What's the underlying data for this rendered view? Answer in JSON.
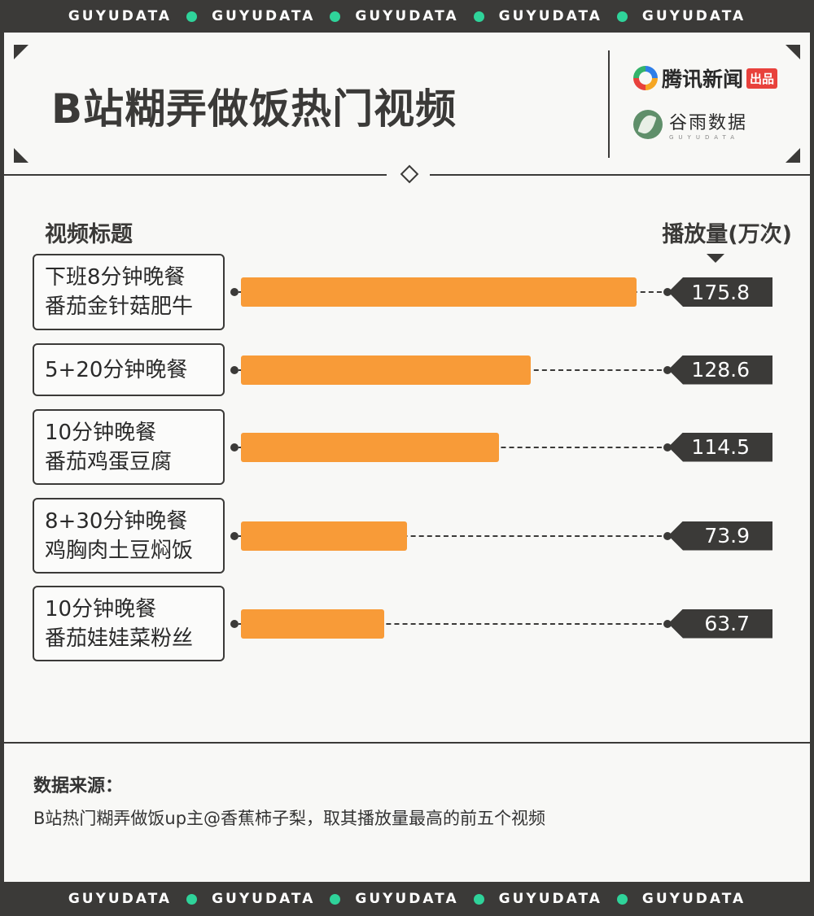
{
  "strip": {
    "word": "GUYUDATA",
    "accent": "#2fd39a"
  },
  "header": {
    "title": "B站糊弄做饭热门视频",
    "brand1": {
      "name": "腾讯新闻",
      "badge": "出品"
    },
    "brand2": {
      "name": "谷雨数据",
      "sub": "GUYUDATA"
    }
  },
  "columns": {
    "left": "视频标题",
    "right": "播放量(万次)"
  },
  "chart_data": {
    "type": "bar",
    "orientation": "horizontal",
    "title": "B站糊弄做饭热门视频",
    "xlabel": "视频标题",
    "ylabel": "播放量(万次)",
    "categories": [
      [
        "下班8分钟晚餐",
        "番茄金针菇肥牛"
      ],
      [
        "5+20分钟晚餐"
      ],
      [
        "10分钟晚餐",
        "番茄鸡蛋豆腐"
      ],
      [
        "8+30分钟晚餐",
        "鸡胸肉土豆焖饭"
      ],
      [
        "10分钟晚餐",
        "番茄娃娃菜粉丝"
      ]
    ],
    "values": [
      175.8,
      128.6,
      114.5,
      73.9,
      63.7
    ],
    "value_labels": [
      "175.8",
      "128.6",
      "114.5",
      "73.9",
      "63.7"
    ],
    "bar_color": "#f89b38",
    "max": 175.8
  },
  "source": {
    "title": "数据来源：",
    "text": "B站热门糊弄做饭up主@香蕉柿子梨，取其播放量最高的前五个视频"
  }
}
